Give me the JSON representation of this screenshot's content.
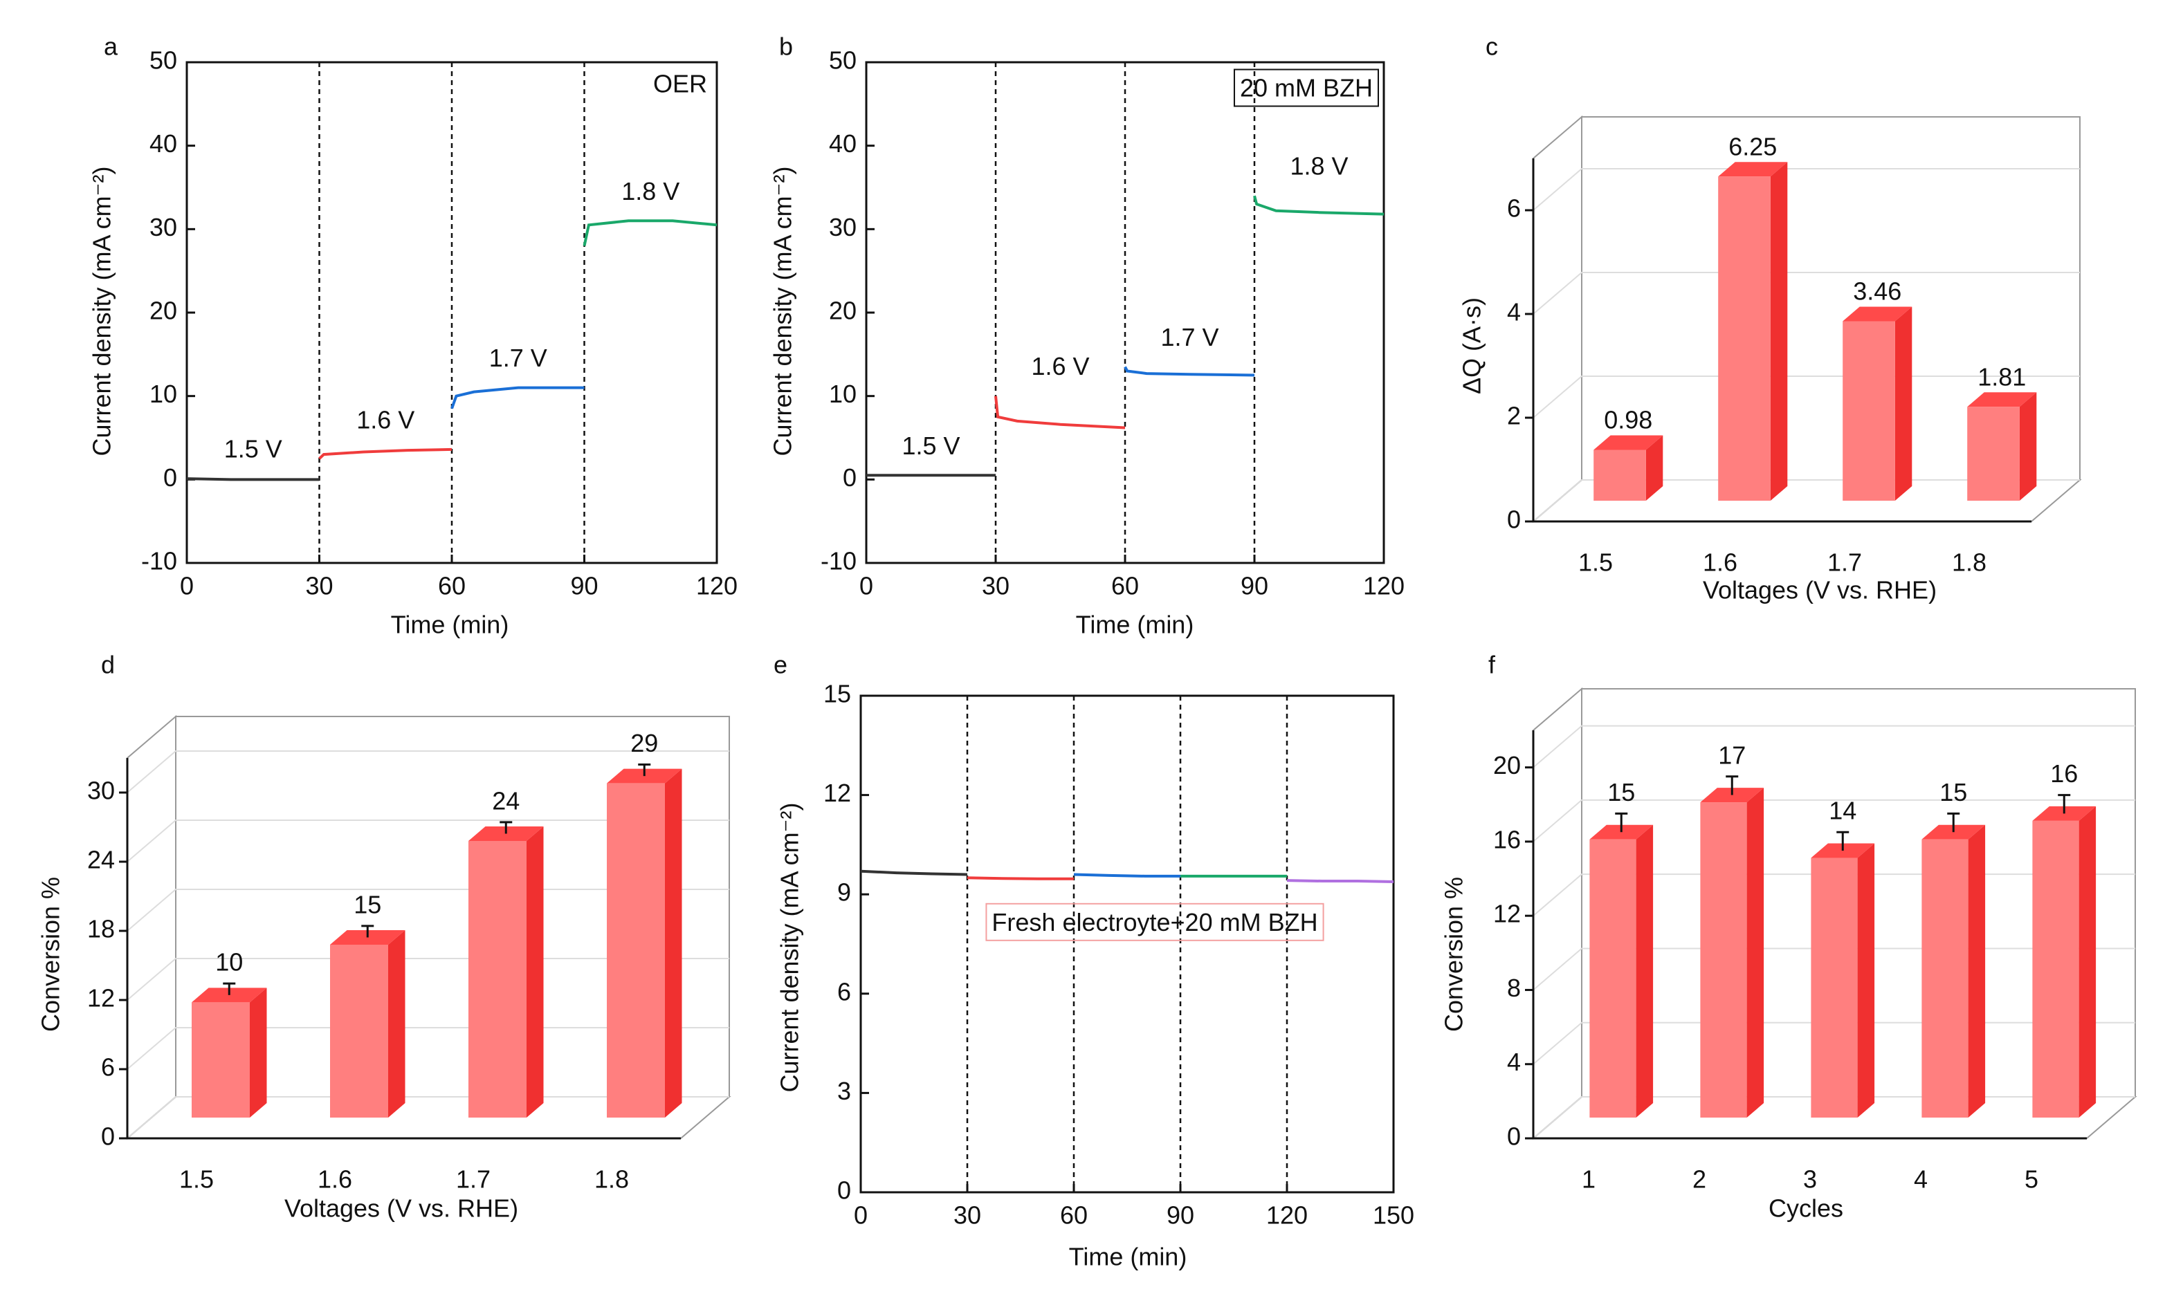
{
  "chart_data": [
    {
      "panel": "a",
      "type": "line",
      "xlabel": "Time (min)",
      "ylabel": "Current density (mA cm⁻²)",
      "xlim": [
        0,
        120
      ],
      "ylim": [
        -10,
        50
      ],
      "xticks": [
        0,
        30,
        60,
        90,
        120
      ],
      "yticks": [
        -10,
        0,
        10,
        20,
        30,
        40,
        50
      ],
      "vlines": [
        30,
        60,
        90
      ],
      "annotation": "OER",
      "series": [
        {
          "name": "1.5 V",
          "color": "#333333",
          "x": [
            0,
            10,
            20,
            30
          ],
          "values": [
            0.1,
            0,
            0,
            0
          ]
        },
        {
          "name": "1.6 V",
          "color": "#f03c3c",
          "x": [
            30,
            31,
            40,
            50,
            60
          ],
          "values": [
            2.5,
            3,
            3.3,
            3.5,
            3.6
          ]
        },
        {
          "name": "1.7 V",
          "color": "#1a6fd6",
          "x": [
            60,
            61,
            65,
            75,
            90
          ],
          "values": [
            8.5,
            10,
            10.5,
            11,
            11
          ]
        },
        {
          "name": "1.8 V",
          "color": "#1aa86a",
          "x": [
            90,
            91,
            100,
            110,
            120
          ],
          "values": [
            28,
            30.5,
            31,
            31,
            30.5
          ]
        }
      ]
    },
    {
      "panel": "b",
      "type": "line",
      "xlabel": "Time (min)",
      "ylabel": "Current density (mA cm⁻²)",
      "xlim": [
        0,
        120
      ],
      "ylim": [
        -10,
        50
      ],
      "xticks": [
        0,
        30,
        60,
        90,
        120
      ],
      "yticks": [
        -10,
        0,
        10,
        20,
        30,
        40,
        50
      ],
      "vlines": [
        30,
        60,
        90
      ],
      "annotation": "20 mM BZH",
      "series": [
        {
          "name": "1.5 V",
          "color": "#333333",
          "x": [
            0,
            10,
            20,
            30
          ],
          "values": [
            0.5,
            0.5,
            0.5,
            0.5
          ]
        },
        {
          "name": "1.6 V",
          "color": "#f03c3c",
          "x": [
            30,
            30.5,
            35,
            45,
            60
          ],
          "values": [
            10,
            7.5,
            7,
            6.6,
            6.2
          ]
        },
        {
          "name": "1.7 V",
          "color": "#1a6fd6",
          "x": [
            60,
            60.5,
            65,
            75,
            90
          ],
          "values": [
            13.5,
            13,
            12.7,
            12.6,
            12.5
          ]
        },
        {
          "name": "1.8 V",
          "color": "#1aa86a",
          "x": [
            90,
            90.5,
            95,
            105,
            120
          ],
          "values": [
            34,
            33,
            32.2,
            32,
            31.8
          ]
        }
      ]
    },
    {
      "panel": "c",
      "type": "bar3d",
      "xlabel": "Voltages (V vs. RHE)",
      "ylabel": "ΔQ (A·s)",
      "categories": [
        "1.5",
        "1.6",
        "1.7",
        "1.8"
      ],
      "values": [
        0.98,
        6.25,
        3.46,
        1.81
      ],
      "ylim": [
        0,
        7
      ],
      "yticks": [
        0,
        2,
        4,
        6
      ],
      "color": "#ff7f7f"
    },
    {
      "panel": "d",
      "type": "bar3d",
      "xlabel": "Voltages (V vs. RHE)",
      "ylabel": "Conversion %",
      "categories": [
        "1.5",
        "1.6",
        "1.7",
        "1.8"
      ],
      "values": [
        10,
        15,
        24,
        29
      ],
      "errors": [
        1,
        1,
        1,
        1
      ],
      "ylim": [
        0,
        33
      ],
      "yticks": [
        0,
        6,
        12,
        18,
        24,
        30
      ],
      "color": "#ff7f7f"
    },
    {
      "panel": "e",
      "type": "line",
      "xlabel": "Time (min)",
      "ylabel": "Current density (mA cm⁻²)",
      "xlim": [
        0,
        150
      ],
      "ylim": [
        0,
        15
      ],
      "xticks": [
        0,
        30,
        60,
        90,
        120,
        150
      ],
      "yticks": [
        0,
        3,
        6,
        9,
        12,
        15
      ],
      "vlines": [
        30,
        60,
        90,
        120
      ],
      "annotation": "Fresh electroyte+20 mM BZH",
      "annotation_color": "#e82020",
      "series": [
        {
          "color": "#333333",
          "x": [
            0,
            10,
            20,
            30
          ],
          "values": [
            9.7,
            9.65,
            9.62,
            9.6
          ]
        },
        {
          "color": "#f03c3c",
          "x": [
            30,
            40,
            50,
            60
          ],
          "values": [
            9.5,
            9.48,
            9.47,
            9.47
          ]
        },
        {
          "color": "#1a6fd6",
          "x": [
            60,
            70,
            80,
            90
          ],
          "values": [
            9.6,
            9.57,
            9.55,
            9.55
          ]
        },
        {
          "color": "#1aa86a",
          "x": [
            90,
            100,
            110,
            120
          ],
          "values": [
            9.55,
            9.55,
            9.55,
            9.55
          ]
        },
        {
          "color": "#b070e0",
          "x": [
            120,
            130,
            140,
            150
          ],
          "values": [
            9.42,
            9.4,
            9.4,
            9.38
          ]
        }
      ]
    },
    {
      "panel": "f",
      "type": "bar3d",
      "xlabel": "Cycles",
      "ylabel": "Conversion %",
      "categories": [
        "1",
        "2",
        "3",
        "4",
        "5"
      ],
      "values": [
        15,
        17,
        14,
        15,
        16
      ],
      "errors": [
        1,
        1,
        1,
        1,
        1
      ],
      "ylim": [
        0,
        22
      ],
      "yticks": [
        0,
        4,
        8,
        12,
        16,
        20
      ],
      "color": "#ff7f7f"
    }
  ]
}
